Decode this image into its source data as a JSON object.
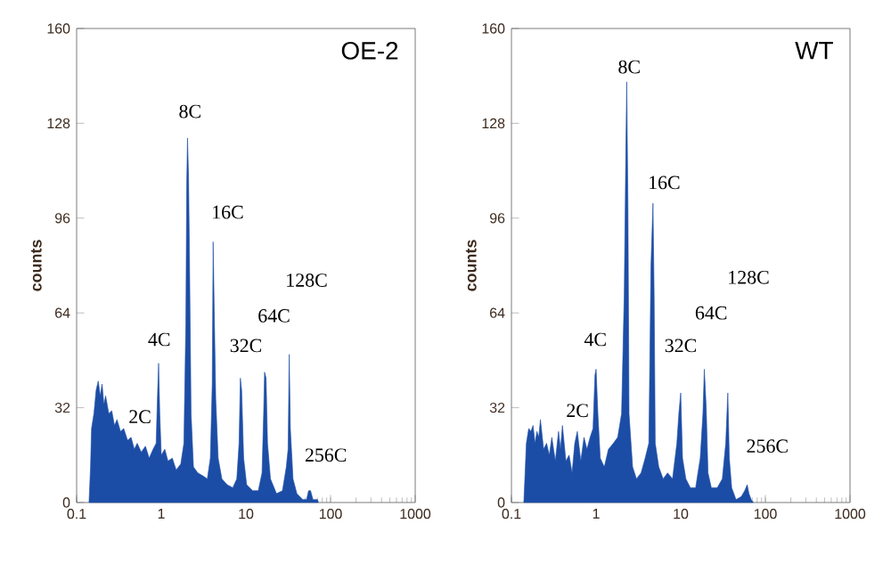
{
  "chart_data": [
    {
      "type": "area",
      "title": "OE-2",
      "ylabel": "counts",
      "log": "x",
      "color": "#1c4da6",
      "xlim": [
        0.1,
        1000
      ],
      "xticks": [
        0.1,
        1,
        10,
        100,
        1000
      ],
      "ylim": [
        0,
        160
      ],
      "yticks": [
        0,
        32,
        64,
        96,
        128,
        160
      ],
      "x": [
        0.14,
        0.146,
        0.15,
        0.16,
        0.17,
        0.18,
        0.19,
        0.2,
        0.21,
        0.22,
        0.24,
        0.26,
        0.28,
        0.3,
        0.33,
        0.36,
        0.4,
        0.44,
        0.48,
        0.52,
        0.58,
        0.65,
        0.72,
        0.8,
        0.87,
        0.9,
        0.93,
        0.96,
        1.0,
        1.1,
        1.2,
        1.35,
        1.5,
        1.7,
        1.85,
        1.95,
        2.0,
        2.04,
        2.1,
        2.15,
        2.25,
        2.4,
        2.7,
        3.1,
        3.5,
        3.8,
        4.0,
        4.1,
        4.25,
        4.4,
        4.7,
        5.2,
        6,
        7,
        7.8,
        8.3,
        8.6,
        8.9,
        9.4,
        10.2,
        12,
        14,
        15.5,
        16.2,
        16.6,
        17.3,
        18,
        19.5,
        23,
        27,
        30,
        31.5,
        32.5,
        33.5,
        36,
        40,
        47,
        52,
        55,
        58,
        62,
        70,
        72
      ],
      "values": [
        0,
        12,
        25,
        30,
        38,
        41,
        36,
        40,
        33,
        36,
        30,
        31,
        26,
        28,
        24,
        25,
        21,
        22,
        18,
        20,
        17,
        19,
        15,
        18,
        20,
        35,
        47,
        30,
        16,
        18,
        14,
        15,
        11,
        13,
        20,
        60,
        108,
        123,
        110,
        85,
        30,
        12,
        10,
        9,
        8,
        15,
        40,
        88,
        60,
        35,
        15,
        8,
        6,
        5,
        8,
        20,
        42,
        38,
        15,
        6,
        4,
        4,
        10,
        30,
        44,
        42,
        20,
        8,
        3,
        4,
        12,
        18,
        50,
        25,
        8,
        3,
        1,
        1,
        4,
        4,
        1,
        1,
        0
      ],
      "annotations": [
        "2C",
        "4C",
        "8C",
        "16C",
        "32C",
        "64C",
        "128C",
        "256C"
      ]
    },
    {
      "type": "area",
      "title": "WT",
      "ylabel": "counts",
      "log": "x",
      "color": "#1c4da6",
      "xlim": [
        0.1,
        1000
      ],
      "xticks": [
        0.1,
        1,
        10,
        100,
        1000
      ],
      "ylim": [
        0,
        160
      ],
      "yticks": [
        0,
        32,
        64,
        96,
        128,
        160
      ],
      "x": [
        0.14,
        0.145,
        0.15,
        0.16,
        0.17,
        0.18,
        0.19,
        0.2,
        0.21,
        0.22,
        0.24,
        0.26,
        0.28,
        0.3,
        0.33,
        0.36,
        0.38,
        0.4,
        0.44,
        0.48,
        0.52,
        0.56,
        0.6,
        0.66,
        0.72,
        0.78,
        0.85,
        0.92,
        0.97,
        1.0,
        1.05,
        1.12,
        1.25,
        1.4,
        1.6,
        1.8,
        2.0,
        2.15,
        2.25,
        2.3,
        2.38,
        2.45,
        2.7,
        3.0,
        3.4,
        3.8,
        4.2,
        4.45,
        4.7,
        4.85,
        5.0,
        5.5,
        6.2,
        7,
        8,
        9,
        9.5,
        10,
        10.5,
        11.5,
        13,
        15,
        17,
        18.3,
        19,
        20,
        21,
        23,
        27,
        31,
        34,
        36,
        37.5,
        40,
        45,
        52,
        57,
        61,
        64,
        68,
        72
      ],
      "values": [
        0,
        10,
        20,
        25,
        24,
        26,
        20,
        24,
        22,
        28,
        18,
        20,
        16,
        22,
        14,
        24,
        18,
        26,
        14,
        16,
        10,
        20,
        24,
        14,
        22,
        18,
        22,
        25,
        43,
        45,
        30,
        15,
        12,
        18,
        20,
        22,
        30,
        70,
        120,
        142,
        100,
        30,
        12,
        8,
        10,
        15,
        20,
        80,
        101,
        70,
        20,
        12,
        8,
        10,
        8,
        20,
        30,
        37,
        15,
        8,
        5,
        5,
        15,
        30,
        45,
        32,
        10,
        5,
        5,
        8,
        20,
        37,
        15,
        5,
        1,
        2,
        4,
        6,
        3,
        1,
        0
      ],
      "annotations": [
        "2C",
        "4C",
        "8C",
        "16C",
        "32C",
        "64C",
        "128C",
        "256C"
      ]
    }
  ]
}
